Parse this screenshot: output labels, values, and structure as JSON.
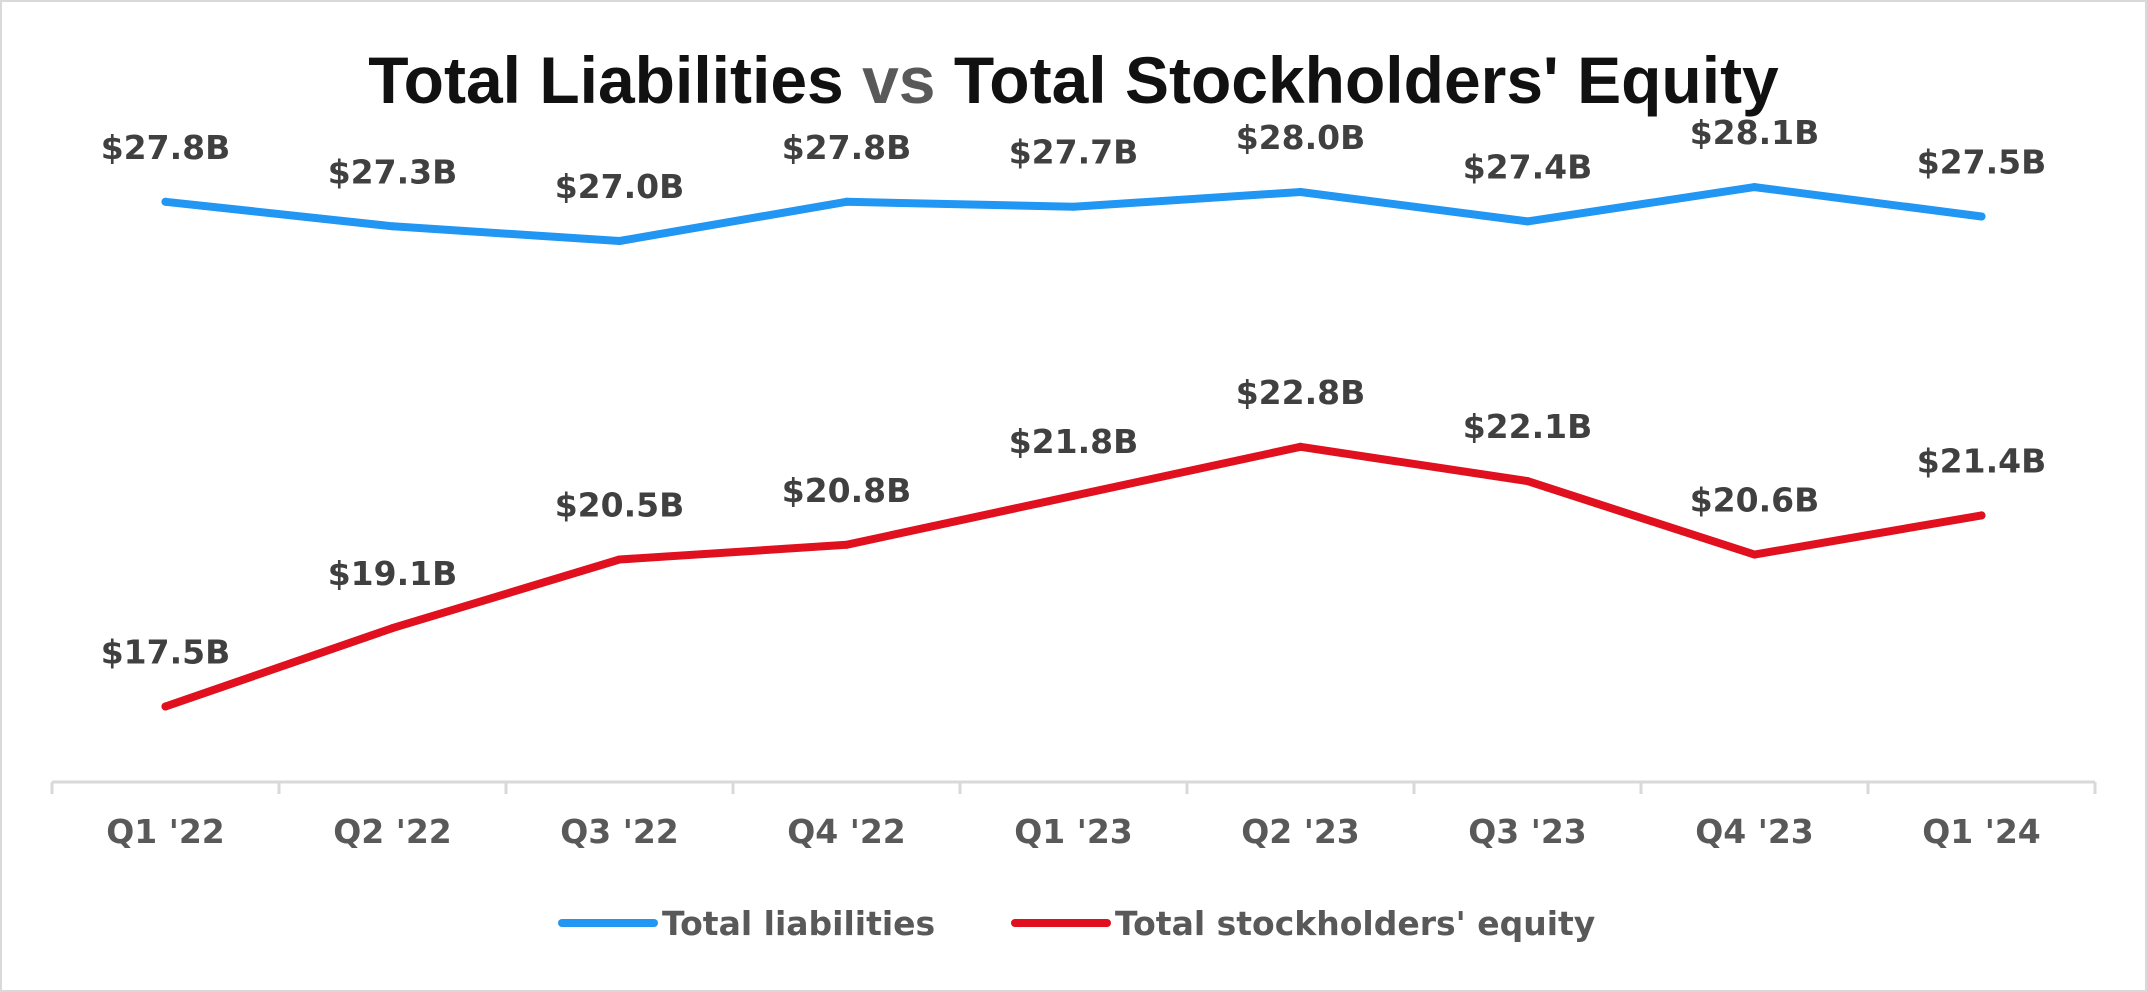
{
  "chart_data": {
    "type": "line",
    "title_parts": [
      "Total Liabilities",
      "vs",
      "Total Stockholders' Equity"
    ],
    "categories": [
      "Q1 '22",
      "Q2 '22",
      "Q3 '22",
      "Q4 '22",
      "Q1 '23",
      "Q2 '23",
      "Q3 '23",
      "Q4 '23",
      "Q1 '24"
    ],
    "series": [
      {
        "name": "Total liabilities",
        "color": "#2196f3",
        "values": [
          27.8,
          27.3,
          27.0,
          27.8,
          27.7,
          28.0,
          27.4,
          28.1,
          27.5
        ],
        "labels": [
          "$27.8B",
          "$27.3B",
          "$27.0B",
          "$27.8B",
          "$27.7B",
          "$28.0B",
          "$27.4B",
          "$28.1B",
          "$27.5B"
        ]
      },
      {
        "name": "Total stockholders' equity",
        "color": "#e0101e",
        "values": [
          17.5,
          19.1,
          20.5,
          20.8,
          21.8,
          22.8,
          22.1,
          20.6,
          21.4
        ],
        "labels": [
          "$17.5B",
          "$19.1B",
          "$20.5B",
          "$20.8B",
          "$21.8B",
          "$22.8B",
          "$22.1B",
          "$20.6B",
          "$21.4B"
        ]
      }
    ],
    "xlabel": "",
    "ylabel": "",
    "ylim": [
      14,
      29
    ],
    "grid": false,
    "legend": "bottom-center",
    "value_axis_visible": false
  }
}
